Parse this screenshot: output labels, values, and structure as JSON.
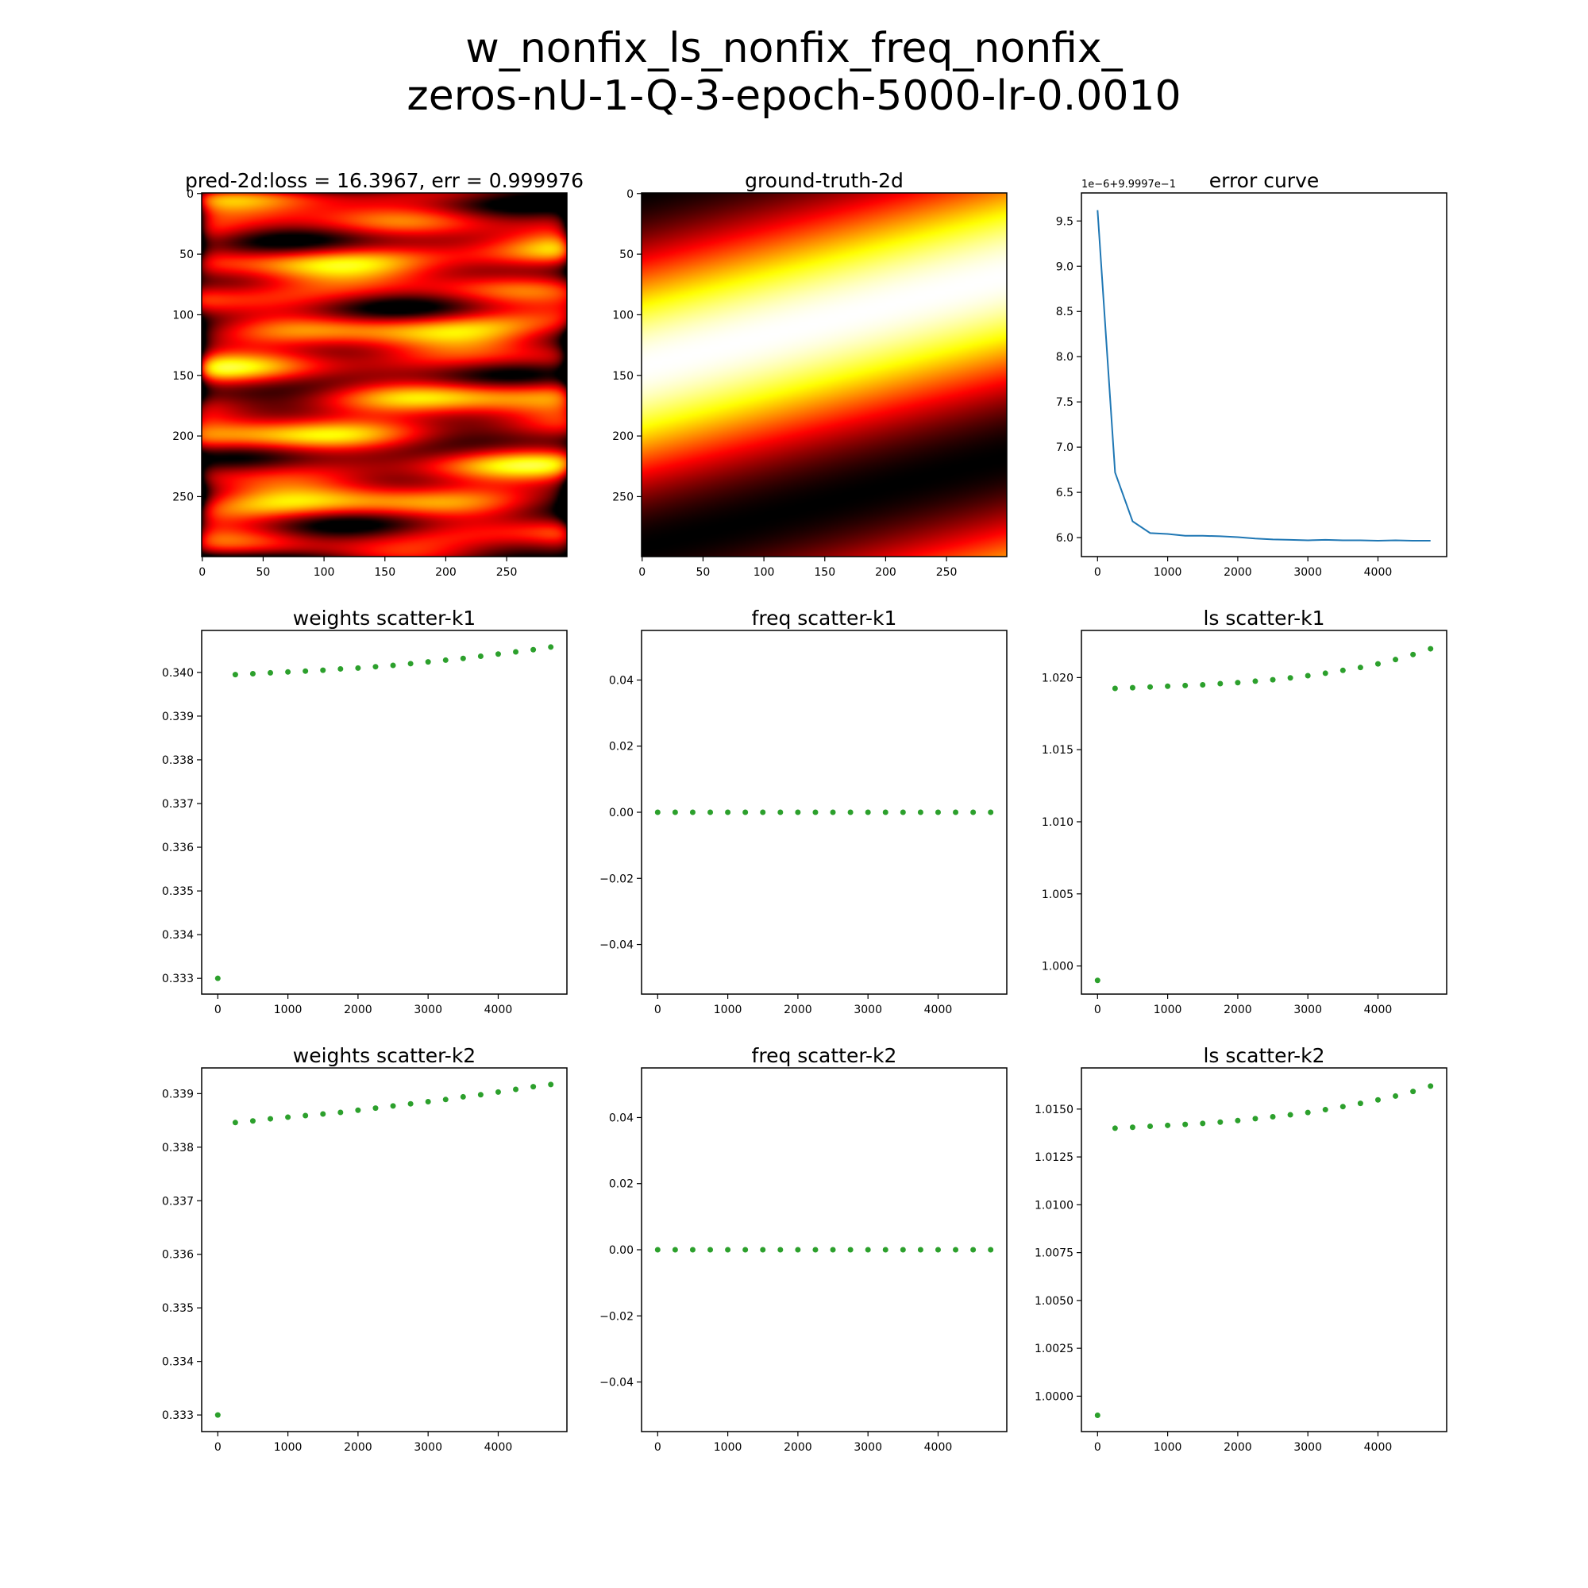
{
  "figure": {
    "title_line1": "w_nonfix_ls_nonfix_freq_nonfix_",
    "title_line2": "zeros-nU-1-Q-3-epoch-5000-lr-0.0010"
  },
  "colors": {
    "line": "#1f77b4",
    "scatter": "#2ca02c",
    "heatmap_colormap": "hot"
  },
  "chart_data": [
    {
      "id": "pred",
      "type": "heatmap",
      "title": "pred-2d:loss = 16.3967, err = 0.999976",
      "x_range": [
        0,
        299
      ],
      "y_range": [
        0,
        299
      ],
      "y_inverted": true,
      "xticks": [
        0,
        50,
        100,
        150,
        200,
        250
      ],
      "yticks": [
        0,
        50,
        100,
        150,
        200,
        250
      ],
      "colormap": "hot",
      "value_range": [
        0.45,
        0.9
      ]
    },
    {
      "id": "gt",
      "type": "heatmap",
      "title": "ground-truth-2d",
      "x_range": [
        0,
        299
      ],
      "y_range": [
        0,
        299
      ],
      "y_inverted": true,
      "xticks": [
        0,
        50,
        100,
        150,
        200,
        250
      ],
      "yticks": [
        0,
        50,
        100,
        150,
        200,
        250
      ],
      "colormap": "hot",
      "value_range": [
        0,
        1
      ]
    },
    {
      "id": "err",
      "type": "line",
      "title": "error curve",
      "offset_label": "1e−6+9.9997e−1",
      "x": [
        0,
        250,
        500,
        750,
        1000,
        1250,
        1500,
        1750,
        2000,
        2250,
        2500,
        2750,
        3000,
        3250,
        3500,
        3750,
        4000,
        4250,
        4500,
        4750
      ],
      "y": [
        9.62,
        6.72,
        6.18,
        6.05,
        6.04,
        6.02,
        6.02,
        6.015,
        6.005,
        5.99,
        5.98,
        5.975,
        5.97,
        5.975,
        5.97,
        5.97,
        5.965,
        5.97,
        5.965,
        5.965
      ],
      "xlim": [
        -230,
        4980
      ],
      "ylim": [
        5.79,
        9.81
      ],
      "xticks": [
        0,
        1000,
        2000,
        3000,
        4000
      ],
      "yticks": [
        "6.0",
        "6.5",
        "7.0",
        "7.5",
        "8.0",
        "8.5",
        "9.0",
        "9.5"
      ]
    },
    {
      "id": "w1",
      "type": "scatter",
      "title": "weights scatter-k1",
      "x": [
        0,
        250,
        500,
        750,
        1000,
        1250,
        1500,
        1750,
        2000,
        2250,
        2500,
        2750,
        3000,
        3250,
        3500,
        3750,
        4000,
        4250,
        4500,
        4750
      ],
      "y": [
        0.333,
        0.33995,
        0.33997,
        0.33999,
        0.34001,
        0.34003,
        0.34005,
        0.34008,
        0.3401,
        0.34013,
        0.34016,
        0.3402,
        0.34024,
        0.34028,
        0.34032,
        0.34037,
        0.34042,
        0.34047,
        0.34052,
        0.34058
      ],
      "xlim": [
        -230,
        4980
      ],
      "ylim": [
        0.33264,
        0.34096
      ],
      "xticks": [
        0,
        1000,
        2000,
        3000,
        4000
      ],
      "yticks": [
        "0.333",
        "0.334",
        "0.335",
        "0.336",
        "0.337",
        "0.338",
        "0.339",
        "0.340"
      ]
    },
    {
      "id": "f1",
      "type": "scatter",
      "title": "freq scatter-k1",
      "x": [
        0,
        250,
        500,
        750,
        1000,
        1250,
        1500,
        1750,
        2000,
        2250,
        2500,
        2750,
        3000,
        3250,
        3500,
        3750,
        4000,
        4250,
        4500,
        4750
      ],
      "y": [
        0,
        0,
        0,
        0,
        0,
        0,
        0,
        0,
        0,
        0,
        0,
        0,
        0,
        0,
        0,
        0,
        0,
        0,
        0,
        0
      ],
      "xlim": [
        -230,
        4980
      ],
      "ylim": [
        -0.055,
        0.055
      ],
      "xticks": [
        0,
        1000,
        2000,
        3000,
        4000
      ],
      "yticks": [
        "−0.04",
        "−0.02",
        "0.00",
        "0.02",
        "0.04"
      ]
    },
    {
      "id": "l1",
      "type": "scatter",
      "title": "ls scatter-k1",
      "x": [
        0,
        250,
        500,
        750,
        1000,
        1250,
        1500,
        1750,
        2000,
        2250,
        2500,
        2750,
        3000,
        3250,
        3500,
        3750,
        4000,
        4250,
        4500,
        4750
      ],
      "y": [
        0.999,
        1.01925,
        1.0193,
        1.01935,
        1.0194,
        1.01945,
        1.0195,
        1.01958,
        1.01965,
        1.01975,
        1.01985,
        1.01998,
        1.02013,
        1.0203,
        1.0205,
        1.0207,
        1.02095,
        1.02125,
        1.0216,
        1.022
      ],
      "xlim": [
        -230,
        4980
      ],
      "ylim": [
        0.99805,
        1.02327
      ],
      "xticks": [
        0,
        1000,
        2000,
        3000,
        4000
      ],
      "yticks": [
        "1.000",
        "1.005",
        "1.010",
        "1.015",
        "1.020"
      ]
    },
    {
      "id": "w2",
      "type": "scatter",
      "title": "weights scatter-k2",
      "x": [
        0,
        250,
        500,
        750,
        1000,
        1250,
        1500,
        1750,
        2000,
        2250,
        2500,
        2750,
        3000,
        3250,
        3500,
        3750,
        4000,
        4250,
        4500,
        4750
      ],
      "y": [
        0.333,
        0.33846,
        0.33849,
        0.33853,
        0.33856,
        0.33859,
        0.33862,
        0.33865,
        0.33869,
        0.33873,
        0.33877,
        0.33881,
        0.33885,
        0.33889,
        0.33894,
        0.33898,
        0.33903,
        0.33908,
        0.33913,
        0.33917
      ],
      "xlim": [
        -230,
        4980
      ],
      "ylim": [
        0.33269,
        0.33948
      ],
      "xticks": [
        0,
        1000,
        2000,
        3000,
        4000
      ],
      "yticks": [
        "0.333",
        "0.334",
        "0.335",
        "0.336",
        "0.337",
        "0.338",
        "0.339"
      ]
    },
    {
      "id": "f2",
      "type": "scatter",
      "title": "freq scatter-k2",
      "x": [
        0,
        250,
        500,
        750,
        1000,
        1250,
        1500,
        1750,
        2000,
        2250,
        2500,
        2750,
        3000,
        3250,
        3500,
        3750,
        4000,
        4250,
        4500,
        4750
      ],
      "y": [
        0,
        0,
        0,
        0,
        0,
        0,
        0,
        0,
        0,
        0,
        0,
        0,
        0,
        0,
        0,
        0,
        0,
        0,
        0,
        0
      ],
      "xlim": [
        -230,
        4980
      ],
      "ylim": [
        -0.055,
        0.055
      ],
      "xticks": [
        0,
        1000,
        2000,
        3000,
        4000
      ],
      "yticks": [
        "−0.04",
        "−0.02",
        "0.00",
        "0.02",
        "0.04"
      ]
    },
    {
      "id": "l2",
      "type": "scatter",
      "title": "ls scatter-k2",
      "x": [
        0,
        250,
        500,
        750,
        1000,
        1250,
        1500,
        1750,
        2000,
        2250,
        2500,
        2750,
        3000,
        3250,
        3500,
        3750,
        4000,
        4250,
        4500,
        4750
      ],
      "y": [
        0.999,
        1.014,
        1.01405,
        1.0141,
        1.01415,
        1.0142,
        1.01425,
        1.01432,
        1.0144,
        1.0145,
        1.0146,
        1.0147,
        1.01482,
        1.01497,
        1.01513,
        1.0153,
        1.01548,
        1.01568,
        1.01592,
        1.0162
      ],
      "xlim": [
        -230,
        4980
      ],
      "ylim": [
        0.99815,
        1.01715
      ],
      "xticks": [
        0,
        1000,
        2000,
        3000,
        4000
      ],
      "yticks": [
        "1.0000",
        "1.0025",
        "1.0050",
        "1.0075",
        "1.0100",
        "1.0125",
        "1.0150"
      ]
    }
  ]
}
